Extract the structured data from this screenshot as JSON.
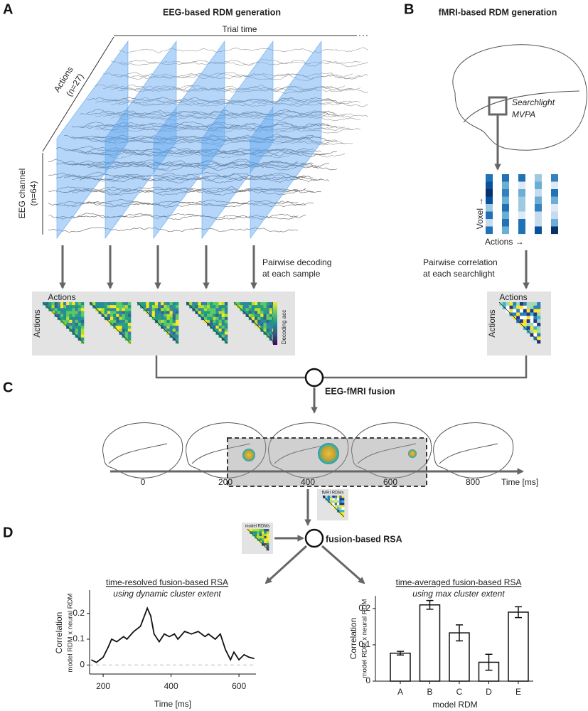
{
  "panel_a": {
    "letter": "A",
    "title": "EEG-based RDM generation",
    "trial_time": "Trial time",
    "actions_axis": "Actions",
    "actions_n": "(n=27)",
    "channel_axis": "EEG channel",
    "channel_n": "(n=64)",
    "step_line1": "Pairwise decoding",
    "step_line2": "at each sample",
    "rdm_top": "Actions",
    "rdm_left": "Actions",
    "colorbar": "Decoding acc"
  },
  "panel_b": {
    "letter": "B",
    "title": "fMRI-based RDM generation",
    "searchlight": "Searchlight",
    "mvpa": "MVPA",
    "voxel": "Voxel →",
    "actions": "Actions →",
    "step_line1": "Pairwise correlation",
    "step_line2": "at each searchlight",
    "rdm_top": "Actions",
    "rdm_left": "Actions"
  },
  "panel_c": {
    "letter": "C",
    "fusion": "EEG-fMRI fusion",
    "timeline_ticks": [
      0,
      200,
      400,
      600,
      800
    ],
    "timeline_label": "Time [ms]"
  },
  "panel_d": {
    "letter": "D",
    "fmri_rdms": "fMRI RDMs",
    "model_rdms": "model RDMs",
    "fusion": "fusion-based RSA"
  },
  "chart_data": [
    {
      "type": "line",
      "title": "time-resolved fusion-based RSA",
      "subtitle": "using dynamic cluster extent",
      "ylabel": "Correlation",
      "ylabel_sub": "model RDM x neural RDM",
      "xlabel": "Time [ms]",
      "x": [
        165,
        180,
        200,
        215,
        225,
        240,
        260,
        270,
        290,
        310,
        330,
        340,
        350,
        365,
        380,
        395,
        410,
        420,
        440,
        460,
        480,
        500,
        510,
        530,
        545,
        560,
        575,
        585,
        600,
        615,
        630,
        645
      ],
      "values": [
        0.02,
        0.01,
        0.03,
        0.07,
        0.1,
        0.09,
        0.11,
        0.1,
        0.13,
        0.15,
        0.22,
        0.19,
        0.12,
        0.09,
        0.12,
        0.11,
        0.12,
        0.1,
        0.13,
        0.12,
        0.13,
        0.11,
        0.12,
        0.1,
        0.12,
        0.06,
        0.02,
        0.05,
        0.02,
        0.04,
        0.03,
        0.025
      ],
      "color": "#111111",
      "xlim": [
        160,
        650
      ],
      "ylim": [
        -0.035,
        0.29
      ],
      "xticks": [
        200,
        400,
        600
      ],
      "yticks": [
        0,
        0.1,
        0.2
      ]
    },
    {
      "type": "bar",
      "title": "time-averaged fusion-based RSA",
      "subtitle": "using max cluster extent",
      "ylabel": "Correlation",
      "ylabel_sub": "model RDM x neural RDM",
      "xlabel": "model RDM",
      "categories": [
        "A",
        "B",
        "C",
        "D",
        "E"
      ],
      "values": [
        0.077,
        0.21,
        0.133,
        0.052,
        0.19
      ],
      "errors": [
        0.005,
        0.012,
        0.022,
        0.022,
        0.015
      ],
      "color": "#ffffff",
      "ylim": [
        0,
        0.235
      ],
      "yticks": [
        0,
        0.1,
        0.2
      ]
    }
  ]
}
